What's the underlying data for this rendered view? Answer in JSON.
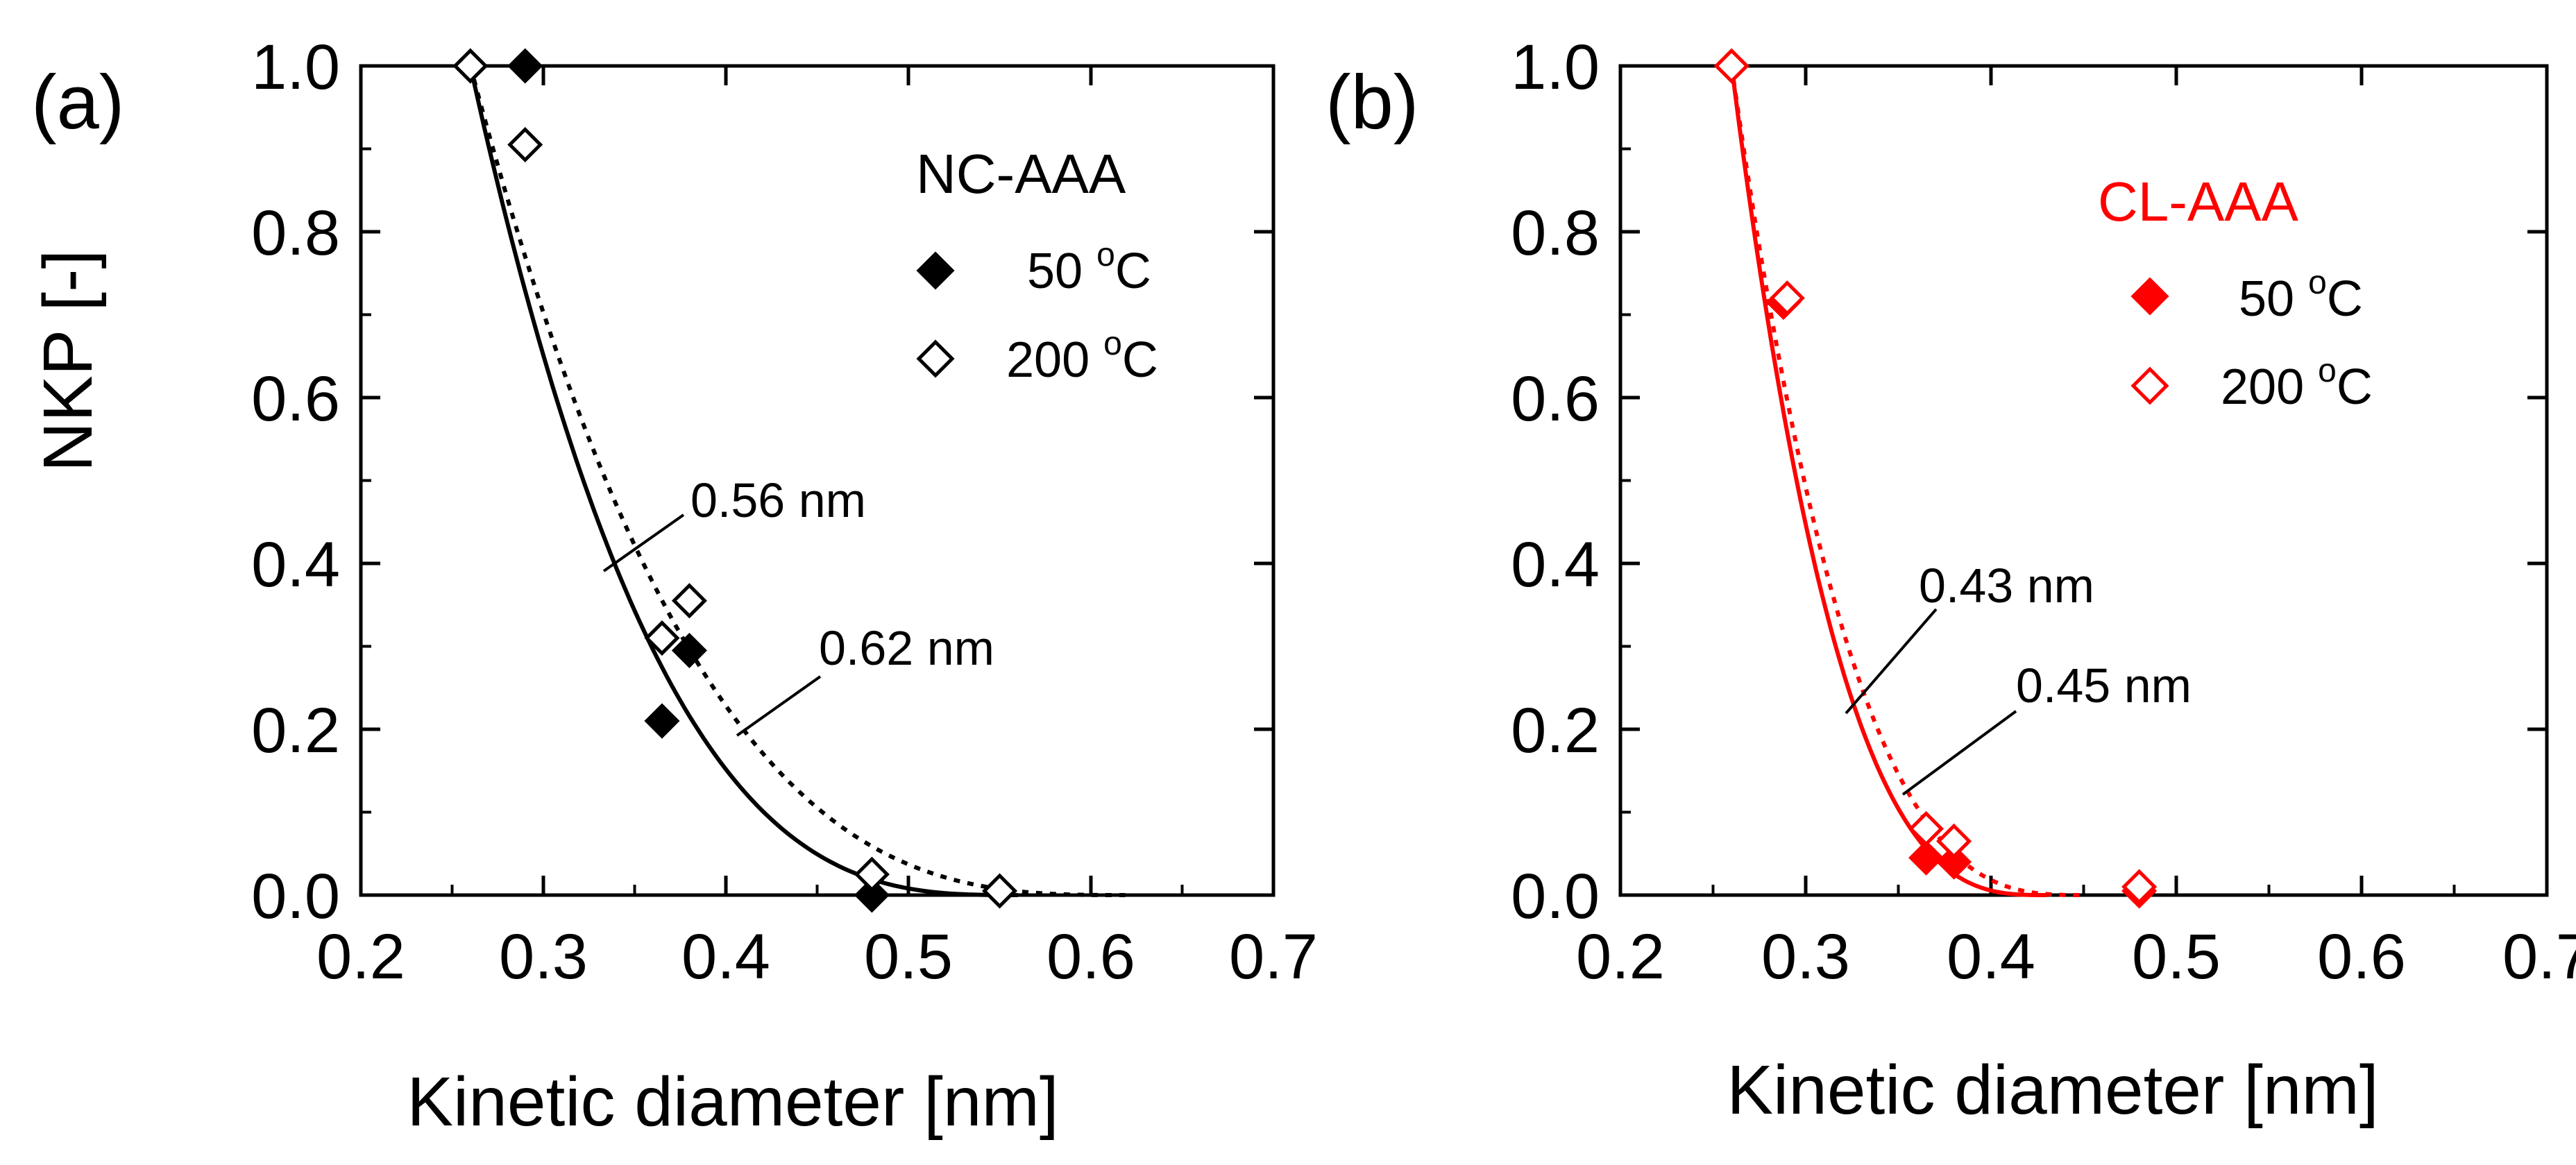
{
  "figure": {
    "ylabel": "NKP [-]",
    "xlabel": "Kinetic diameter [nm]"
  },
  "chart_data": [
    {
      "type": "scatter",
      "panel": "(a)",
      "title": "NC-AAA",
      "title_color": "#000000",
      "color": "#000000",
      "xlabel": "Kinetic diameter [nm]",
      "ylabel": "NKP [-]",
      "xlim": [
        0.2,
        0.7
      ],
      "ylim": [
        0.0,
        1.0
      ],
      "xticks": [
        "0.2",
        "0.3",
        "0.4",
        "0.5",
        "0.6",
        "0.7"
      ],
      "yticks": [
        "0.0",
        "0.2",
        "0.4",
        "0.6",
        "0.8",
        "1.0"
      ],
      "legend_position": "top-right",
      "series": [
        {
          "name": "50 °C",
          "legend_value": "50",
          "marker": "filled-diamond",
          "x": [
            0.26,
            0.29,
            0.365,
            0.38,
            0.48
          ],
          "y": [
            1.0,
            1.0,
            0.21,
            0.295,
            0.0
          ]
        },
        {
          "name": "200 °C",
          "legend_value": "200",
          "marker": "open-diamond",
          "x": [
            0.26,
            0.29,
            0.365,
            0.38,
            0.48,
            0.55
          ],
          "y": [
            1.0,
            0.905,
            0.31,
            0.355,
            0.025,
            0.005
          ]
        }
      ],
      "fits": [
        {
          "name": "50 °C fit",
          "style": "solid",
          "d0": 0.26,
          "dmax": 0.56,
          "label": "0.56 nm"
        },
        {
          "name": "200 °C fit",
          "style": "dotted",
          "d0": 0.26,
          "dmax": 0.62,
          "label": "0.62 nm"
        }
      ]
    },
    {
      "type": "scatter",
      "panel": "(b)",
      "title": "CL-AAA",
      "title_color": "#ff0000",
      "color": "#ff0000",
      "xlabel": "Kinetic diameter [nm]",
      "ylabel": "",
      "xlim": [
        0.2,
        0.7
      ],
      "ylim": [
        0.0,
        1.0
      ],
      "xticks": [
        "0.2",
        "0.3",
        "0.4",
        "0.5",
        "0.6",
        "0.7"
      ],
      "yticks": [
        "0.0",
        "0.2",
        "0.4",
        "0.6",
        "0.8",
        "1.0"
      ],
      "legend_position": "top-right",
      "series": [
        {
          "name": "50 °C",
          "legend_value": "50",
          "marker": "filled-diamond",
          "x": [
            0.26,
            0.288,
            0.365,
            0.38,
            0.48
          ],
          "y": [
            1.0,
            0.715,
            0.045,
            0.04,
            0.005
          ]
        },
        {
          "name": "200 °C",
          "legend_value": "200",
          "marker": "open-diamond",
          "x": [
            0.26,
            0.29,
            0.365,
            0.38,
            0.48
          ],
          "y": [
            1.0,
            0.72,
            0.08,
            0.065,
            0.01
          ]
        }
      ],
      "fits": [
        {
          "name": "50 °C fit",
          "style": "solid",
          "d0": 0.26,
          "dmax": 0.43,
          "label": "0.43 nm"
        },
        {
          "name": "200 °C fit",
          "style": "dotted",
          "d0": 0.26,
          "dmax": 0.45,
          "label": "0.45 nm"
        }
      ]
    }
  ]
}
